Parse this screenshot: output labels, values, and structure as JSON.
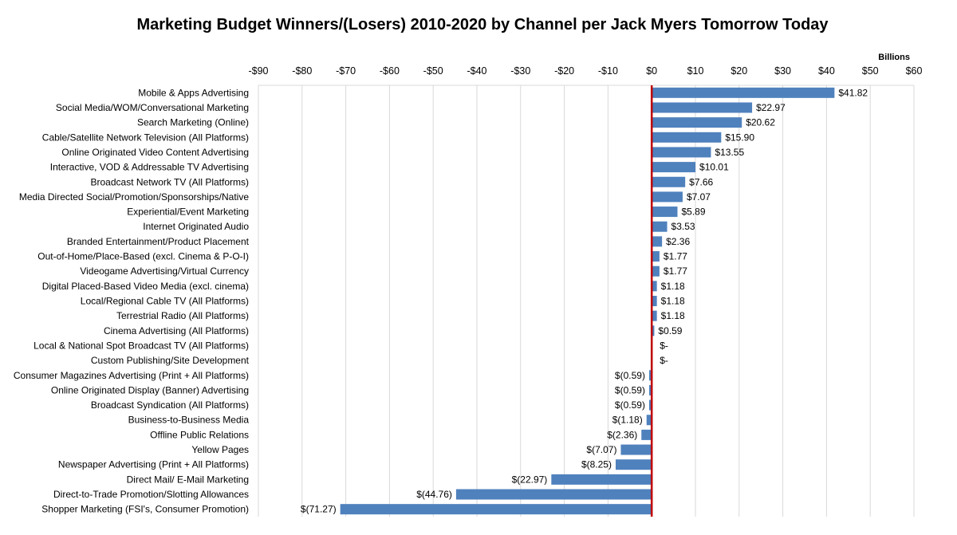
{
  "chart_data": {
    "type": "bar",
    "orientation": "horizontal",
    "title": "Marketing Budget Winners/(Losers)  2010-2020  by Channel per Jack Myers Tomorrow Today",
    "unit_label": "Billions",
    "xlim": [
      -90,
      60
    ],
    "x_ticks": [
      "-$90",
      "-$80",
      "-$70",
      "-$60",
      "-$50",
      "-$40",
      "-$30",
      "-$20",
      "-$10",
      "$0",
      "$10",
      "$20",
      "$30",
      "$40",
      "$50",
      "$60"
    ],
    "x_tick_values": [
      -90,
      -80,
      -70,
      -60,
      -50,
      -40,
      -30,
      -20,
      -10,
      0,
      10,
      20,
      30,
      40,
      50,
      60
    ],
    "grid": true,
    "axis_position": "top",
    "bar_color": "#4F81BD",
    "zero_line_color": "#C00000",
    "categories": [
      "Mobile & Apps Advertising",
      "Social Media/WOM/Conversational Marketing",
      "Search Marketing (Online)",
      "Cable/Satellite Network Television (All Platforms)",
      "Online Originated Video Content Advertising",
      "Interactive, VOD & Addressable TV Advertising",
      "Broadcast Network TV (All Platforms)",
      "Media Directed Social/Promotion/Sponsorships/Native",
      "Experiential/Event Marketing",
      "Internet Originated Audio",
      "Branded Entertainment/Product Placement",
      "Out-of-Home/Place-Based (excl. Cinema & P-O-I)",
      "Videogame Advertising/Virtual Currency",
      "Digital Placed-Based Video Media (excl. cinema)",
      "Local/Regional Cable TV (All Platforms)",
      "Terrestrial Radio (All Platforms)",
      "Cinema Advertising (All Platforms)",
      "Local & National Spot Broadcast TV (All Platforms)",
      "Custom Publishing/Site Development",
      "Consumer Magazines Advertising (Print + All Platforms)",
      "Online Originated Display (Banner) Advertising",
      "Broadcast Syndication (All Platforms)",
      "Business-to-Business Media",
      "Offline Public Relations",
      "Yellow Pages",
      "Newspaper Advertising (Print + All Platforms)",
      "Direct Mail/ E-Mail Marketing",
      "Direct-to-Trade Promotion/Slotting Allowances",
      "Shopper Marketing (FSI's, Consumer Promotion)"
    ],
    "values": [
      41.82,
      22.97,
      20.62,
      15.9,
      13.55,
      10.01,
      7.66,
      7.07,
      5.89,
      3.53,
      2.36,
      1.77,
      1.77,
      1.18,
      1.18,
      1.18,
      0.59,
      0,
      0,
      -0.59,
      -0.59,
      -0.59,
      -1.18,
      -2.36,
      -7.07,
      -8.25,
      -22.97,
      -44.76,
      -71.27
    ],
    "data_labels": [
      "$41.82",
      "$22.97",
      "$20.62",
      "$15.90",
      "$13.55",
      "$10.01",
      "$7.66",
      "$7.07",
      "$5.89",
      "$3.53",
      "$2.36",
      "$1.77",
      "$1.77",
      "$1.18",
      "$1.18",
      "$1.18",
      "$0.59",
      "$-",
      "$-",
      "$(0.59)",
      "$(0.59)",
      "$(0.59)",
      "$(1.18)",
      "$(2.36)",
      "$(7.07)",
      "$(8.25)",
      "$(22.97)",
      "$(44.76)",
      "$(71.27)"
    ]
  }
}
